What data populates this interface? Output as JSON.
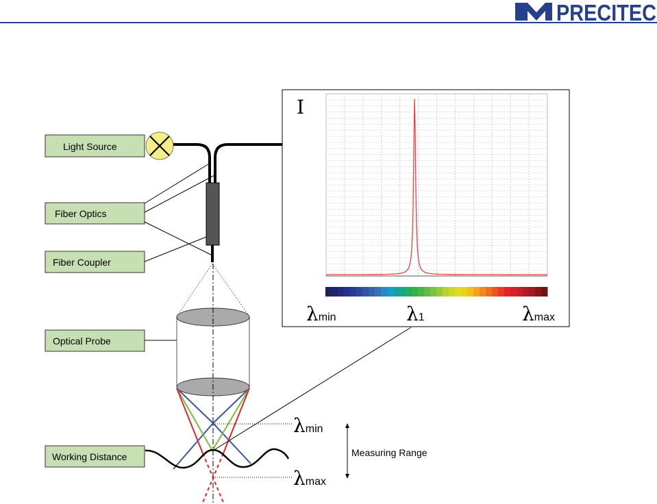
{
  "logo": {
    "text": "PRECITEC",
    "color": "#27408b"
  },
  "labels": {
    "light_source": "Light Source",
    "fiber_optics": "Fiber Optics",
    "fiber_coupler": "Fiber Coupler",
    "optical_probe": "Optical Probe",
    "working_distance": "Working Distance",
    "measuring_range": "Measuring Range"
  },
  "spectrum": {
    "intensity_symbol": "I",
    "lambda": "λ",
    "min_sub": "min",
    "one_sub": "1",
    "max_sub": "max",
    "peak_position": 0.4,
    "peak_color": "#e8413c"
  },
  "focus": {
    "lambda": "λ",
    "min_sub": "min",
    "max_sub": "max"
  },
  "colors": {
    "label_fill": "#c6e0b4",
    "lamp_fill": "#f6ee86",
    "ray_blue": "#3a55a8",
    "ray_green": "#7dbb3a",
    "ray_red": "#e8232a"
  }
}
